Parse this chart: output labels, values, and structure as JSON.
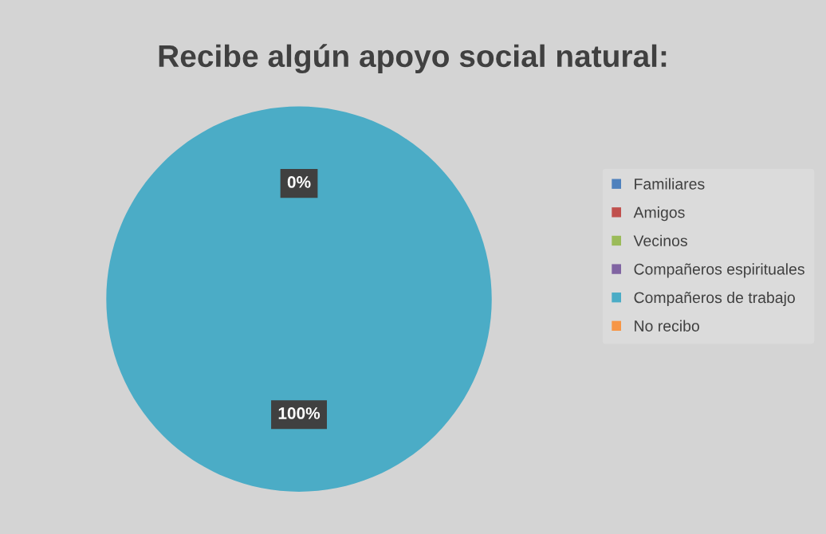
{
  "chart_data": {
    "type": "pie",
    "title": "Recibe algún apoyo social natural:",
    "categories": [
      "Familiares",
      "Amigos",
      "Vecinos",
      "Compañeros espirituales",
      "Compañeros de trabajo",
      "No recibo"
    ],
    "values": [
      0,
      0,
      0,
      0,
      100,
      0
    ],
    "colors": [
      "#4f81bd",
      "#c0504d",
      "#9bbb59",
      "#8064a2",
      "#4bacc6",
      "#f79646"
    ],
    "value_labels": [
      "0%",
      null,
      null,
      null,
      "100%",
      null
    ],
    "legend": "right"
  }
}
